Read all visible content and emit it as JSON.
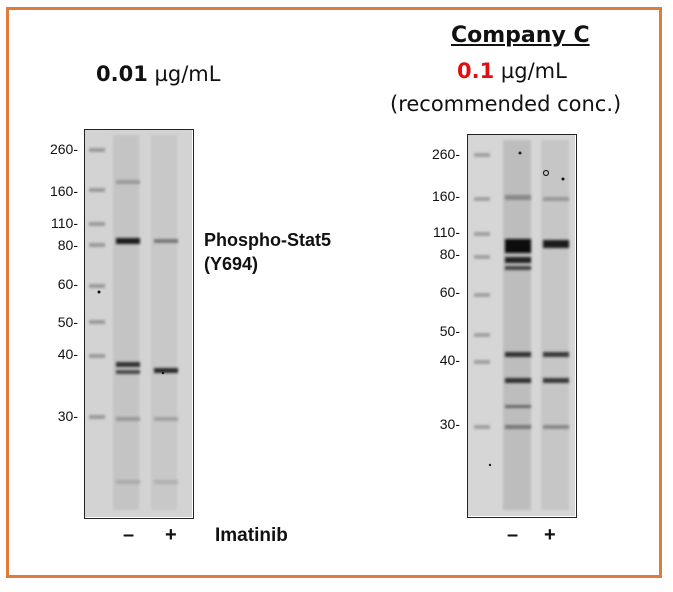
{
  "left_panel": {
    "conc_value": "0.01",
    "conc_unit": "µg/mL",
    "mw_markers": [
      "260-",
      "160-",
      "110-",
      "80-",
      "60-",
      "50-",
      "40-",
      "30-"
    ],
    "target_line1": "Phospho-Stat5",
    "target_line2": "(Y694)",
    "lanes": [
      "–",
      "+"
    ],
    "treatment": "Imatinib"
  },
  "right_panel": {
    "company": "Company C",
    "conc_value": "0.1",
    "conc_unit": "µg/mL",
    "conc_note": "(recommended conc.)",
    "mw_markers": [
      "260-",
      "160-",
      "110-",
      "80-",
      "60-",
      "50-",
      "40-",
      "30-"
    ],
    "lanes": [
      "–",
      "+"
    ]
  },
  "colors": {
    "frame": "#e07b39",
    "highlight": "#e01010"
  }
}
